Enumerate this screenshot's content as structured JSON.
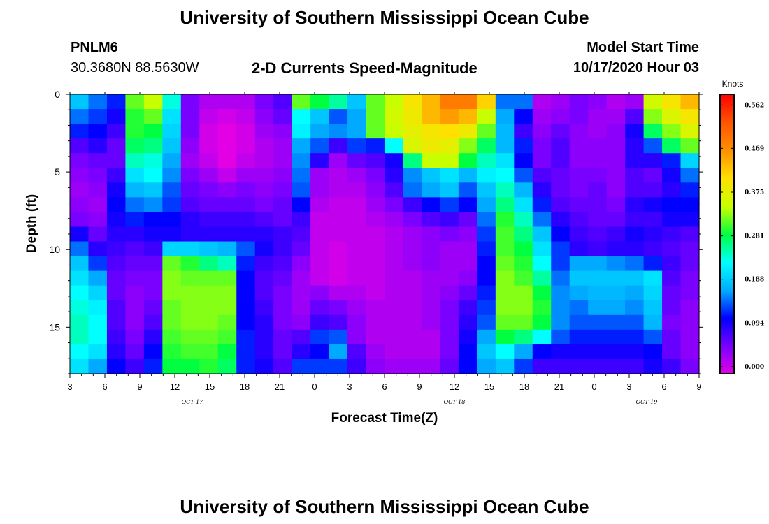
{
  "header": {
    "title": "University of Southern Mississippi Ocean Cube",
    "station_id": "PNLM6",
    "station_coords": "30.3680N 88.5630W",
    "plot_title": "2-D Currents Speed-Magnitude",
    "model_start_label": "Model Start Time",
    "model_start_value": "10/17/2020 Hour 03"
  },
  "footer": {
    "title": "University of Southern Mississippi Ocean Cube"
  },
  "chart_data": {
    "type": "heatmap",
    "title": "2-D Currents Speed-Magnitude",
    "xlabel": "Forecast Time(Z)",
    "ylabel": "Depth (ft)",
    "x_tick_labels": [
      "3",
      "6",
      "9",
      "12",
      "15",
      "18",
      "21",
      "0",
      "3",
      "6",
      "9",
      "12",
      "15",
      "18",
      "21",
      "0",
      "3",
      "6",
      "9"
    ],
    "x_range_hours": [
      0,
      54
    ],
    "date_labels": [
      {
        "text": "OCT 17",
        "hour": 10.5
      },
      {
        "text": "OCT 18",
        "hour": 33.0
      },
      {
        "text": "OCT 19",
        "hour": 49.5
      }
    ],
    "y_ticks": [
      0,
      5,
      10,
      15
    ],
    "ylim": [
      0,
      18
    ],
    "y_inverted": true,
    "colorbar": {
      "unit": "Knots",
      "range": [
        0.0,
        0.6
      ],
      "tick_labels": [
        "0.000",
        "0.094",
        "0.188",
        "0.281",
        "0.375",
        "0.469",
        "0.562"
      ],
      "tick_values": [
        0.0,
        0.094,
        0.188,
        0.281,
        0.375,
        0.469,
        0.562
      ],
      "colors": [
        "#e400e4",
        "#7a00ff",
        "#0000ff",
        "#00aaff",
        "#00ffff",
        "#00ff40",
        "#c8ff00",
        "#ffe000",
        "#ff9000",
        "#ff5500",
        "#ff0000"
      ]
    },
    "z_rows_knots": [
      [
        0.2,
        0.16,
        0.13,
        0.33,
        0.36,
        0.25,
        0.06,
        0.03,
        0.03,
        0.03,
        0.06,
        0.08,
        0.33,
        0.3,
        0.27,
        0.2,
        0.33,
        0.36,
        0.41,
        0.45,
        0.5,
        0.5,
        0.43,
        0.16,
        0.16,
        0.03,
        0.04,
        0.06,
        0.05,
        0.03,
        0.04,
        0.37,
        0.41,
        0.45
      ],
      [
        0.16,
        0.14,
        0.11,
        0.31,
        0.33,
        0.22,
        0.06,
        0.02,
        0.01,
        0.02,
        0.05,
        0.07,
        0.24,
        0.2,
        0.15,
        0.18,
        0.33,
        0.37,
        0.4,
        0.45,
        0.47,
        0.45,
        0.36,
        0.18,
        0.12,
        0.04,
        0.05,
        0.06,
        0.04,
        0.04,
        0.08,
        0.34,
        0.38,
        0.41
      ],
      [
        0.13,
        0.12,
        0.09,
        0.31,
        0.3,
        0.21,
        0.06,
        0.01,
        0.0,
        0.01,
        0.04,
        0.05,
        0.23,
        0.18,
        0.17,
        0.18,
        0.33,
        0.36,
        0.39,
        0.41,
        0.42,
        0.4,
        0.33,
        0.19,
        0.09,
        0.05,
        0.07,
        0.05,
        0.04,
        0.05,
        0.11,
        0.29,
        0.34,
        0.38
      ],
      [
        0.08,
        0.1,
        0.07,
        0.29,
        0.28,
        0.2,
        0.05,
        0.01,
        0.0,
        0.01,
        0.03,
        0.04,
        0.18,
        0.15,
        0.09,
        0.14,
        0.13,
        0.24,
        0.38,
        0.4,
        0.39,
        0.34,
        0.29,
        0.19,
        0.13,
        0.06,
        0.08,
        0.05,
        0.05,
        0.05,
        0.1,
        0.15,
        0.29,
        0.33
      ],
      [
        0.06,
        0.07,
        0.07,
        0.26,
        0.25,
        0.18,
        0.04,
        0.02,
        0.0,
        0.02,
        0.03,
        0.04,
        0.17,
        0.1,
        0.04,
        0.07,
        0.08,
        0.11,
        0.28,
        0.36,
        0.36,
        0.3,
        0.26,
        0.22,
        0.12,
        0.06,
        0.08,
        0.05,
        0.05,
        0.05,
        0.1,
        0.1,
        0.13,
        0.21
      ],
      [
        0.05,
        0.06,
        0.09,
        0.22,
        0.24,
        0.17,
        0.06,
        0.04,
        0.02,
        0.04,
        0.04,
        0.05,
        0.16,
        0.04,
        0.03,
        0.04,
        0.06,
        0.1,
        0.17,
        0.2,
        0.22,
        0.19,
        0.23,
        0.24,
        0.15,
        0.08,
        0.07,
        0.06,
        0.06,
        0.05,
        0.08,
        0.07,
        0.11,
        0.16
      ],
      [
        0.04,
        0.05,
        0.11,
        0.19,
        0.2,
        0.15,
        0.07,
        0.06,
        0.05,
        0.06,
        0.05,
        0.06,
        0.15,
        0.04,
        0.03,
        0.03,
        0.05,
        0.08,
        0.16,
        0.18,
        0.2,
        0.15,
        0.2,
        0.26,
        0.19,
        0.1,
        0.07,
        0.06,
        0.07,
        0.05,
        0.08,
        0.08,
        0.1,
        0.13
      ],
      [
        0.05,
        0.04,
        0.12,
        0.16,
        0.17,
        0.14,
        0.08,
        0.07,
        0.07,
        0.07,
        0.06,
        0.07,
        0.12,
        0.03,
        0.02,
        0.02,
        0.04,
        0.06,
        0.09,
        0.12,
        0.14,
        0.12,
        0.18,
        0.28,
        0.22,
        0.13,
        0.08,
        0.07,
        0.07,
        0.06,
        0.1,
        0.11,
        0.12,
        0.12
      ],
      [
        0.06,
        0.05,
        0.11,
        0.13,
        0.12,
        0.12,
        0.1,
        0.09,
        0.09,
        0.09,
        0.08,
        0.07,
        0.09,
        0.02,
        0.02,
        0.02,
        0.03,
        0.04,
        0.06,
        0.08,
        0.09,
        0.07,
        0.16,
        0.31,
        0.26,
        0.16,
        0.1,
        0.08,
        0.07,
        0.07,
        0.09,
        0.09,
        0.11,
        0.11
      ],
      [
        0.11,
        0.07,
        0.1,
        0.1,
        0.11,
        0.11,
        0.1,
        0.1,
        0.1,
        0.1,
        0.1,
        0.09,
        0.08,
        0.02,
        0.02,
        0.02,
        0.02,
        0.03,
        0.04,
        0.05,
        0.06,
        0.05,
        0.14,
        0.32,
        0.28,
        0.2,
        0.12,
        0.09,
        0.08,
        0.09,
        0.11,
        0.1,
        0.09,
        0.08
      ],
      [
        0.16,
        0.1,
        0.09,
        0.08,
        0.09,
        0.21,
        0.21,
        0.2,
        0.19,
        0.15,
        0.11,
        0.09,
        0.07,
        0.02,
        0.01,
        0.02,
        0.02,
        0.03,
        0.04,
        0.05,
        0.04,
        0.04,
        0.13,
        0.32,
        0.3,
        0.22,
        0.14,
        0.1,
        0.09,
        0.1,
        0.1,
        0.09,
        0.08,
        0.07
      ],
      [
        0.2,
        0.14,
        0.08,
        0.07,
        0.07,
        0.33,
        0.31,
        0.28,
        0.26,
        0.13,
        0.09,
        0.08,
        0.05,
        0.02,
        0.01,
        0.02,
        0.02,
        0.03,
        0.04,
        0.05,
        0.04,
        0.04,
        0.12,
        0.33,
        0.31,
        0.24,
        0.14,
        0.18,
        0.18,
        0.17,
        0.16,
        0.13,
        0.09,
        0.07
      ],
      [
        0.22,
        0.18,
        0.07,
        0.06,
        0.06,
        0.34,
        0.33,
        0.33,
        0.33,
        0.12,
        0.08,
        0.07,
        0.04,
        0.02,
        0.01,
        0.02,
        0.02,
        0.03,
        0.03,
        0.04,
        0.04,
        0.05,
        0.12,
        0.34,
        0.32,
        0.27,
        0.16,
        0.2,
        0.2,
        0.2,
        0.2,
        0.22,
        0.08,
        0.06
      ],
      [
        0.24,
        0.21,
        0.07,
        0.05,
        0.06,
        0.34,
        0.34,
        0.34,
        0.34,
        0.12,
        0.08,
        0.06,
        0.04,
        0.05,
        0.03,
        0.03,
        0.02,
        0.03,
        0.03,
        0.04,
        0.05,
        0.07,
        0.13,
        0.34,
        0.34,
        0.3,
        0.17,
        0.18,
        0.19,
        0.19,
        0.18,
        0.21,
        0.07,
        0.06
      ],
      [
        0.25,
        0.23,
        0.08,
        0.05,
        0.07,
        0.33,
        0.34,
        0.34,
        0.34,
        0.12,
        0.09,
        0.06,
        0.04,
        0.07,
        0.06,
        0.04,
        0.03,
        0.03,
        0.03,
        0.04,
        0.06,
        0.09,
        0.14,
        0.34,
        0.34,
        0.31,
        0.17,
        0.16,
        0.18,
        0.18,
        0.17,
        0.2,
        0.07,
        0.05
      ],
      [
        0.26,
        0.24,
        0.08,
        0.05,
        0.08,
        0.33,
        0.34,
        0.34,
        0.33,
        0.12,
        0.1,
        0.06,
        0.05,
        0.09,
        0.08,
        0.05,
        0.03,
        0.03,
        0.03,
        0.04,
        0.06,
        0.1,
        0.15,
        0.33,
        0.33,
        0.3,
        0.17,
        0.15,
        0.15,
        0.15,
        0.15,
        0.19,
        0.06,
        0.05
      ],
      [
        0.26,
        0.24,
        0.09,
        0.06,
        0.1,
        0.32,
        0.33,
        0.33,
        0.32,
        0.13,
        0.1,
        0.07,
        0.08,
        0.14,
        0.15,
        0.05,
        0.03,
        0.03,
        0.03,
        0.03,
        0.06,
        0.11,
        0.18,
        0.3,
        0.28,
        0.24,
        0.15,
        0.13,
        0.13,
        0.13,
        0.13,
        0.15,
        0.07,
        0.05
      ],
      [
        0.24,
        0.22,
        0.1,
        0.07,
        0.12,
        0.31,
        0.32,
        0.32,
        0.3,
        0.13,
        0.1,
        0.07,
        0.1,
        0.12,
        0.18,
        0.08,
        0.04,
        0.03,
        0.03,
        0.03,
        0.06,
        0.12,
        0.2,
        0.24,
        0.18,
        0.12,
        0.11,
        0.11,
        0.11,
        0.11,
        0.11,
        0.12,
        0.07,
        0.05
      ],
      [
        0.22,
        0.18,
        0.12,
        0.09,
        0.13,
        0.3,
        0.3,
        0.31,
        0.29,
        0.13,
        0.11,
        0.08,
        0.14,
        0.14,
        0.14,
        0.09,
        0.05,
        0.04,
        0.04,
        0.04,
        0.07,
        0.12,
        0.18,
        0.2,
        0.14,
        0.09,
        0.09,
        0.09,
        0.09,
        0.09,
        0.09,
        0.11,
        0.09,
        0.06
      ]
    ]
  }
}
